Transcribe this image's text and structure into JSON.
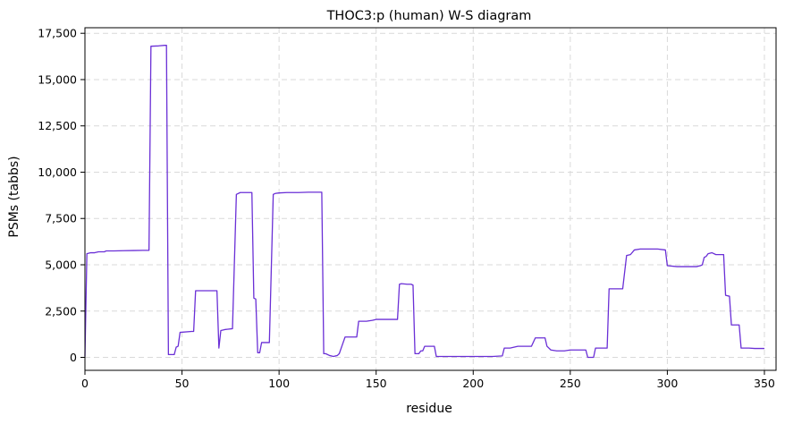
{
  "chart_data": {
    "type": "line",
    "title": "THOC3:p (human) W-S diagram",
    "xlabel": "residue",
    "ylabel": "PSMs (tabbs)",
    "xlim": [
      0,
      356
    ],
    "ylim": [
      -700,
      17800
    ],
    "grid": true,
    "line_color": "#6a2fd6",
    "x_ticks": [
      0,
      50,
      100,
      150,
      200,
      250,
      300,
      350
    ],
    "x_tick_labels": [
      "0",
      "50",
      "100",
      "150",
      "200",
      "250",
      "300",
      "350"
    ],
    "y_ticks": [
      0,
      2500,
      5000,
      7500,
      10000,
      12500,
      15000,
      17500
    ],
    "y_tick_labels": [
      "0",
      "2,500",
      "5,000",
      "7,500",
      "10,000",
      "12,500",
      "15,000",
      "17,500"
    ],
    "series": [
      {
        "points": [
          [
            0,
            50
          ],
          [
            1,
            5600
          ],
          [
            3,
            5650
          ],
          [
            5,
            5650
          ],
          [
            7,
            5700
          ],
          [
            10,
            5700
          ],
          [
            11,
            5750
          ],
          [
            15,
            5750
          ],
          [
            20,
            5760
          ],
          [
            25,
            5770
          ],
          [
            30,
            5780
          ],
          [
            33,
            5780
          ],
          [
            34,
            16800
          ],
          [
            38,
            16820
          ],
          [
            41,
            16850
          ],
          [
            42,
            16850
          ],
          [
            43,
            150
          ],
          [
            46,
            150
          ],
          [
            47,
            550
          ],
          [
            48,
            600
          ],
          [
            49,
            1350
          ],
          [
            55,
            1400
          ],
          [
            56,
            1400
          ],
          [
            57,
            3600
          ],
          [
            60,
            3600
          ],
          [
            64,
            3600
          ],
          [
            68,
            3600
          ],
          [
            69,
            500
          ],
          [
            70,
            1450
          ],
          [
            72,
            1500
          ],
          [
            76,
            1550
          ],
          [
            78,
            8800
          ],
          [
            80,
            8900
          ],
          [
            84,
            8900
          ],
          [
            86,
            8900
          ],
          [
            87,
            3200
          ],
          [
            88,
            3150
          ],
          [
            89,
            250
          ],
          [
            90,
            250
          ],
          [
            91,
            800
          ],
          [
            94,
            800
          ],
          [
            95,
            800
          ],
          [
            97,
            8800
          ],
          [
            98,
            8850
          ],
          [
            100,
            8880
          ],
          [
            104,
            8900
          ],
          [
            110,
            8900
          ],
          [
            115,
            8920
          ],
          [
            120,
            8920
          ],
          [
            122,
            8920
          ],
          [
            123,
            200
          ],
          [
            124,
            200
          ],
          [
            126,
            100
          ],
          [
            128,
            50
          ],
          [
            130,
            100
          ],
          [
            131,
            200
          ],
          [
            134,
            1100
          ],
          [
            138,
            1100
          ],
          [
            140,
            1100
          ],
          [
            141,
            1950
          ],
          [
            145,
            1950
          ],
          [
            148,
            2000
          ],
          [
            150,
            2050
          ],
          [
            155,
            2050
          ],
          [
            160,
            2050
          ],
          [
            161,
            2050
          ],
          [
            162,
            3950
          ],
          [
            163,
            3980
          ],
          [
            166,
            3950
          ],
          [
            168,
            3950
          ],
          [
            169,
            3900
          ],
          [
            170,
            200
          ],
          [
            172,
            200
          ],
          [
            173,
            350
          ],
          [
            174,
            350
          ],
          [
            175,
            600
          ],
          [
            178,
            600
          ],
          [
            180,
            600
          ],
          [
            181,
            50
          ],
          [
            185,
            50
          ],
          [
            190,
            50
          ],
          [
            200,
            50
          ],
          [
            210,
            50
          ],
          [
            215,
            80
          ],
          [
            216,
            500
          ],
          [
            219,
            500
          ],
          [
            221,
            550
          ],
          [
            223,
            600
          ],
          [
            226,
            600
          ],
          [
            230,
            600
          ],
          [
            232,
            1050
          ],
          [
            235,
            1050
          ],
          [
            237,
            1050
          ],
          [
            238,
            600
          ],
          [
            240,
            400
          ],
          [
            243,
            350
          ],
          [
            247,
            350
          ],
          [
            250,
            400
          ],
          [
            255,
            400
          ],
          [
            258,
            400
          ],
          [
            259,
            0
          ],
          [
            262,
            0
          ],
          [
            263,
            500
          ],
          [
            266,
            500
          ],
          [
            269,
            500
          ],
          [
            270,
            3700
          ],
          [
            273,
            3700
          ],
          [
            277,
            3700
          ],
          [
            279,
            5500
          ],
          [
            281,
            5550
          ],
          [
            283,
            5800
          ],
          [
            286,
            5850
          ],
          [
            290,
            5850
          ],
          [
            295,
            5850
          ],
          [
            299,
            5800
          ],
          [
            300,
            4950
          ],
          [
            305,
            4900
          ],
          [
            310,
            4900
          ],
          [
            315,
            4900
          ],
          [
            317,
            4950
          ],
          [
            318,
            5000
          ],
          [
            319,
            5400
          ],
          [
            320,
            5450
          ],
          [
            321,
            5600
          ],
          [
            323,
            5650
          ],
          [
            325,
            5550
          ],
          [
            328,
            5550
          ],
          [
            329,
            5550
          ],
          [
            330,
            3350
          ],
          [
            332,
            3300
          ],
          [
            333,
            1750
          ],
          [
            336,
            1750
          ],
          [
            337,
            1750
          ],
          [
            338,
            500
          ],
          [
            340,
            500
          ],
          [
            342,
            500
          ],
          [
            345,
            480
          ],
          [
            350,
            480
          ]
        ]
      }
    ]
  }
}
